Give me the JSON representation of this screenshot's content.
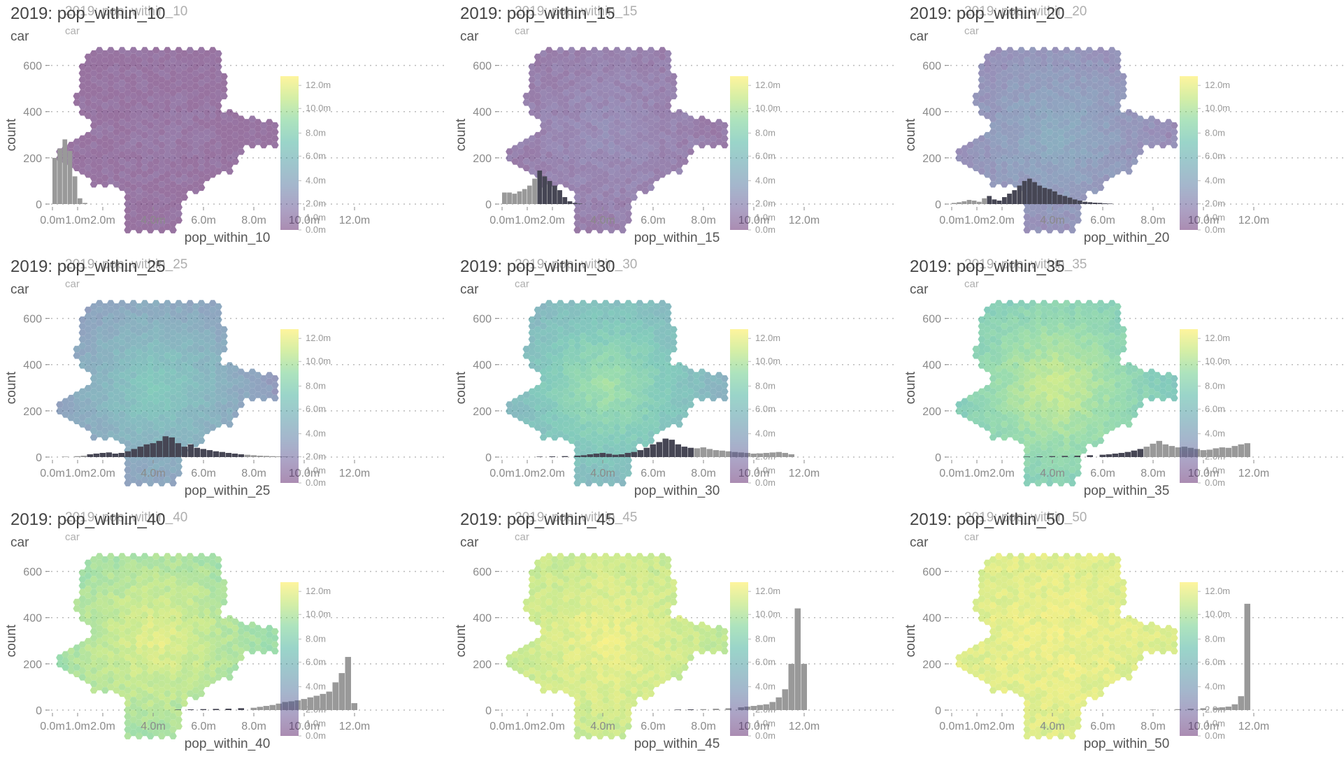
{
  "panels": [
    {
      "title": "2019: pop_within_10",
      "subtitle": "car",
      "ghost_title": "2019: pop_within_10",
      "ghost_subtitle": "car",
      "xlabel": "pop_within_10",
      "ylabel": "count",
      "map_level": 0.05,
      "hot": 0.04,
      "peak": 0.0
    },
    {
      "title": "2019: pop_within_15",
      "subtitle": "car",
      "ghost_title": "2019: pop_within_15",
      "ghost_subtitle": "car",
      "xlabel": "pop_within_15",
      "ylabel": "count",
      "map_level": 0.12,
      "hot": 0.08,
      "peak": 0.0
    },
    {
      "title": "2019: pop_within_20",
      "subtitle": "car",
      "ghost_title": "2019: pop_within_20",
      "ghost_subtitle": "car",
      "xlabel": "pop_within_20",
      "ylabel": "count",
      "map_level": 0.22,
      "hot": 0.18,
      "peak": 0.0
    },
    {
      "title": "2019: pop_within_25",
      "subtitle": "car",
      "ghost_title": "2019: pop_within_25",
      "ghost_subtitle": "car",
      "xlabel": "pop_within_25",
      "ylabel": "count",
      "map_level": 0.34,
      "hot": 0.28,
      "peak": 0.0
    },
    {
      "title": "2019: pop_within_30",
      "subtitle": "car",
      "ghost_title": "2019: pop_within_30",
      "ghost_subtitle": "car",
      "xlabel": "pop_within_30",
      "ylabel": "count",
      "map_level": 0.5,
      "hot": 0.3,
      "peak": 0.0
    },
    {
      "title": "2019: pop_within_35",
      "subtitle": "car",
      "ghost_title": "2019: pop_within_35",
      "ghost_subtitle": "car",
      "xlabel": "pop_within_35",
      "ylabel": "count",
      "map_level": 0.66,
      "hot": 0.26,
      "peak": 0.0
    },
    {
      "title": "2019: pop_within_40",
      "subtitle": "car",
      "ghost_title": "2019: pop_within_40",
      "ghost_subtitle": "car",
      "xlabel": "pop_within_40",
      "ylabel": "count",
      "map_level": 0.8,
      "hot": 0.18,
      "peak": 0.0
    },
    {
      "title": "2019: pop_within_45",
      "subtitle": "car",
      "ghost_title": "2019: pop_within_45",
      "ghost_subtitle": "car",
      "xlabel": "pop_within_45",
      "ylabel": "count",
      "map_level": 0.9,
      "hot": 0.1,
      "peak": 0.0
    },
    {
      "title": "2019: pop_within_50",
      "subtitle": "car",
      "ghost_title": "2019: pop_within_50",
      "ghost_subtitle": "car",
      "xlabel": "pop_within_50",
      "ylabel": "count",
      "map_level": 0.96,
      "hot": 0.04,
      "peak": 0.0
    }
  ],
  "legend_ticks": [
    "12.0m",
    "10.0m",
    "8.0m",
    "6.0m",
    "4.0m",
    "2.0m",
    "1.0m",
    "0.0m"
  ],
  "legend_colors": [
    "#fde725",
    "#a0da39",
    "#4ac16d",
    "#1fa187",
    "#277f8e",
    "#365c8d",
    "#46327e",
    "#440154"
  ],
  "colors": {
    "bar": "#999999",
    "bar_overlay": "#2b2b3d",
    "grid": "#bbbbbb",
    "axis_text": "#8a8a8a"
  },
  "chart_data": [
    {
      "type": "bar",
      "title": "2019: pop_within_10",
      "subtitle": "car",
      "xlabel": "pop_within_10",
      "ylabel": "count",
      "x_ticks": [
        "0.0m",
        "1.0m",
        "2.0m",
        "4.0m",
        "6.0m",
        "8.0m",
        "10.0m",
        "12.0m"
      ],
      "y_ticks": [
        0,
        200,
        400,
        600
      ],
      "xlim": [
        0,
        12.5
      ],
      "ylim": [
        0,
        620
      ],
      "bin_width": 0.2,
      "x": [
        0.1,
        0.3,
        0.5,
        0.7,
        0.9,
        1.1,
        1.3
      ],
      "values": [
        200,
        240,
        280,
        230,
        120,
        25,
        5
      ]
    },
    {
      "type": "bar",
      "title": "2019: pop_within_15",
      "subtitle": "car",
      "xlabel": "pop_within_15",
      "ylabel": "count",
      "x_ticks": [
        "0.0m",
        "1.0m",
        "2.0m",
        "4.0m",
        "6.0m",
        "8.0m",
        "10.0m",
        "12.0m"
      ],
      "y_ticks": [
        0,
        200,
        400,
        600
      ],
      "xlim": [
        0,
        12.5
      ],
      "ylim": [
        0,
        620
      ],
      "bin_width": 0.2,
      "x": [
        0.1,
        0.3,
        0.5,
        0.7,
        0.9,
        1.1,
        1.3,
        1.5,
        1.7,
        1.9,
        2.1,
        2.3,
        2.5,
        2.7,
        2.9,
        3.1
      ],
      "values": [
        50,
        50,
        45,
        55,
        65,
        80,
        110,
        145,
        120,
        100,
        80,
        60,
        30,
        12,
        5,
        2
      ]
    },
    {
      "type": "bar",
      "title": "2019: pop_within_20",
      "subtitle": "car",
      "xlabel": "pop_within_20",
      "ylabel": "count",
      "x_ticks": [
        "0.0m",
        "1.0m",
        "2.0m",
        "4.0m",
        "6.0m",
        "8.0m",
        "10.0m",
        "12.0m"
      ],
      "y_ticks": [
        0,
        200,
        400,
        600
      ],
      "xlim": [
        0,
        12.5
      ],
      "ylim": [
        0,
        620
      ],
      "bin_width": 0.2,
      "x": [
        0.1,
        0.3,
        0.5,
        0.7,
        0.9,
        1.1,
        1.3,
        1.5,
        1.7,
        1.9,
        2.1,
        2.3,
        2.5,
        2.7,
        2.9,
        3.1,
        3.3,
        3.5,
        3.7,
        3.9,
        4.1,
        4.3,
        4.5,
        4.7,
        4.9,
        5.1,
        5.3,
        5.5,
        5.7,
        5.9,
        6.1,
        6.3
      ],
      "values": [
        5,
        8,
        12,
        18,
        15,
        10,
        25,
        35,
        20,
        15,
        30,
        45,
        60,
        80,
        100,
        110,
        95,
        80,
        70,
        65,
        55,
        40,
        35,
        28,
        20,
        15,
        10,
        8,
        6,
        5,
        3,
        2
      ]
    },
    {
      "type": "bar",
      "title": "2019: pop_within_25",
      "subtitle": "car",
      "xlabel": "pop_within_25",
      "ylabel": "count",
      "x_ticks": [
        "0.0m",
        "1.0m",
        "2.0m",
        "4.0m",
        "6.0m",
        "8.0m",
        "10.0m",
        "12.0m"
      ],
      "y_ticks": [
        0,
        200,
        400,
        600
      ],
      "xlim": [
        0,
        12.5
      ],
      "ylim": [
        0,
        620
      ],
      "bin_width": 0.25,
      "x": [
        0.5,
        1.0,
        1.25,
        1.5,
        1.75,
        2.0,
        2.25,
        2.5,
        2.75,
        3.0,
        3.25,
        3.5,
        3.75,
        4.0,
        4.25,
        4.5,
        4.75,
        5.0,
        5.25,
        5.5,
        5.75,
        6.0,
        6.25,
        6.5,
        6.75,
        7.0,
        7.25,
        7.5,
        7.75,
        8.0,
        8.25,
        8.5,
        8.75,
        9.0,
        9.25,
        9.5
      ],
      "values": [
        2,
        4,
        6,
        12,
        15,
        18,
        20,
        15,
        18,
        25,
        35,
        45,
        55,
        60,
        70,
        90,
        85,
        60,
        45,
        55,
        40,
        35,
        30,
        25,
        22,
        18,
        15,
        12,
        10,
        8,
        6,
        5,
        4,
        3,
        2,
        1
      ]
    },
    {
      "type": "bar",
      "title": "2019: pop_within_30",
      "subtitle": "car",
      "xlabel": "pop_within_30",
      "ylabel": "count",
      "x_ticks": [
        "0.0m",
        "1.0m",
        "2.0m",
        "4.0m",
        "6.0m",
        "8.0m",
        "10.0m",
        "12.0m"
      ],
      "y_ticks": [
        0,
        200,
        400,
        600
      ],
      "xlim": [
        0,
        12.5
      ],
      "ylim": [
        0,
        620
      ],
      "bin_width": 0.25,
      "x": [
        1.5,
        2.0,
        2.5,
        3.0,
        3.25,
        3.5,
        3.75,
        4.0,
        4.25,
        4.5,
        4.75,
        5.0,
        5.25,
        5.5,
        5.75,
        6.0,
        6.25,
        6.5,
        6.75,
        7.0,
        7.25,
        7.5,
        7.75,
        8.0,
        8.25,
        8.5,
        8.75,
        9.0,
        9.25,
        9.5,
        9.75,
        10.0,
        10.25,
        10.5,
        10.75,
        11.0,
        11.25,
        11.5
      ],
      "values": [
        2,
        3,
        4,
        6,
        8,
        12,
        15,
        18,
        14,
        10,
        12,
        18,
        22,
        30,
        40,
        55,
        65,
        80,
        75,
        55,
        45,
        40,
        38,
        42,
        35,
        30,
        28,
        25,
        22,
        20,
        18,
        15,
        16,
        18,
        20,
        22,
        18,
        12
      ]
    },
    {
      "type": "bar",
      "title": "2019: pop_within_35",
      "subtitle": "car",
      "xlabel": "pop_within_35",
      "ylabel": "count",
      "x_ticks": [
        "0.0m",
        "1.0m",
        "2.0m",
        "4.0m",
        "6.0m",
        "8.0m",
        "10.0m",
        "12.0m"
      ],
      "y_ticks": [
        0,
        200,
        400,
        600
      ],
      "xlim": [
        0,
        12.5
      ],
      "ylim": [
        0,
        620
      ],
      "bin_width": 0.25,
      "x": [
        3.0,
        3.5,
        4.0,
        4.5,
        5.0,
        5.5,
        6.0,
        6.25,
        6.5,
        6.75,
        7.0,
        7.25,
        7.5,
        7.75,
        8.0,
        8.25,
        8.5,
        8.75,
        9.0,
        9.25,
        9.5,
        9.75,
        10.0,
        10.25,
        10.5,
        10.75,
        11.0,
        11.25,
        11.5,
        11.75
      ],
      "values": [
        2,
        3,
        4,
        5,
        6,
        8,
        10,
        12,
        15,
        18,
        22,
        28,
        35,
        45,
        58,
        70,
        55,
        48,
        42,
        45,
        40,
        35,
        30,
        32,
        38,
        42,
        40,
        48,
        55,
        60
      ]
    },
    {
      "type": "bar",
      "title": "2019: pop_within_40",
      "subtitle": "car",
      "xlabel": "pop_within_40",
      "ylabel": "count",
      "x_ticks": [
        "0.0m",
        "1.0m",
        "2.0m",
        "4.0m",
        "6.0m",
        "8.0m",
        "10.0m",
        "12.0m"
      ],
      "y_ticks": [
        0,
        200,
        400,
        600
      ],
      "xlim": [
        0,
        12.5
      ],
      "ylim": [
        0,
        620
      ],
      "bin_width": 0.25,
      "x": [
        5.0,
        5.5,
        6.0,
        6.5,
        7.0,
        7.5,
        8.0,
        8.25,
        8.5,
        8.75,
        9.0,
        9.25,
        9.5,
        9.75,
        10.0,
        10.25,
        10.5,
        10.75,
        11.0,
        11.25,
        11.5,
        11.75,
        12.0
      ],
      "values": [
        2,
        3,
        4,
        5,
        6,
        8,
        10,
        14,
        18,
        22,
        28,
        35,
        38,
        42,
        48,
        55,
        62,
        70,
        80,
        120,
        160,
        230,
        30
      ]
    },
    {
      "type": "bar",
      "title": "2019: pop_within_45",
      "subtitle": "car",
      "xlabel": "pop_within_45",
      "ylabel": "count",
      "x_ticks": [
        "0.0m",
        "1.0m",
        "2.0m",
        "4.0m",
        "6.0m",
        "8.0m",
        "10.0m",
        "12.0m"
      ],
      "y_ticks": [
        0,
        200,
        400,
        600
      ],
      "xlim": [
        0,
        12.5
      ],
      "ylim": [
        0,
        620
      ],
      "bin_width": 0.25,
      "x": [
        7.0,
        7.5,
        8.0,
        8.5,
        9.0,
        9.5,
        9.75,
        10.0,
        10.25,
        10.5,
        10.75,
        11.0,
        11.25,
        11.5,
        11.75,
        12.0
      ],
      "values": [
        2,
        3,
        4,
        6,
        8,
        12,
        15,
        18,
        22,
        25,
        35,
        55,
        90,
        200,
        440,
        200
      ]
    },
    {
      "type": "bar",
      "title": "2019: pop_within_50",
      "subtitle": "car",
      "xlabel": "pop_within_50",
      "ylabel": "count",
      "x_ticks": [
        "0.0m",
        "1.0m",
        "2.0m",
        "4.0m",
        "6.0m",
        "8.0m",
        "10.0m",
        "12.0m"
      ],
      "y_ticks": [
        0,
        200,
        400,
        600
      ],
      "xlim": [
        0,
        12.5
      ],
      "ylim": [
        0,
        620
      ],
      "bin_width": 0.25,
      "x": [
        8.0,
        9.0,
        9.5,
        10.0,
        10.5,
        10.75,
        11.0,
        11.25,
        11.5,
        11.75
      ],
      "values": [
        2,
        4,
        6,
        8,
        10,
        12,
        15,
        25,
        60,
        460
      ]
    }
  ]
}
